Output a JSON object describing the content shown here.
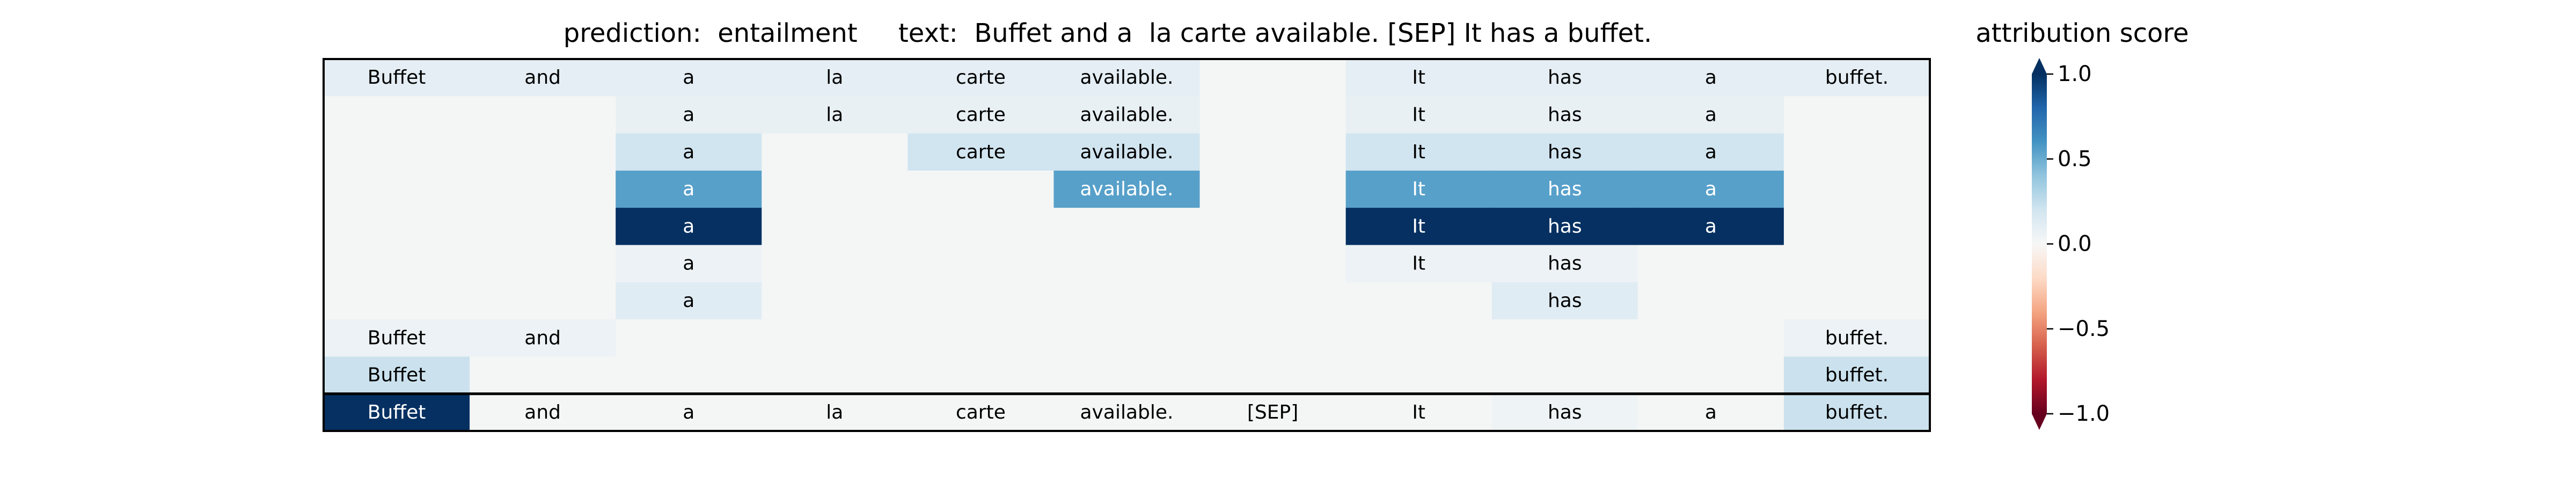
{
  "title": "prediction:  entailment     text:  Buffet and a  la carte available. [SEP] It has a buffet.",
  "colorbar": {
    "label": "attribution score",
    "ticks": [
      "1.0",
      "0.5",
      "0.0",
      "−0.5",
      "−1.0"
    ],
    "range": [
      -1.0,
      1.0
    ]
  },
  "colors": {
    "background": "#f4f6f6",
    "negative_end": "#67001f",
    "positive_end": "#053061"
  },
  "chart_data": {
    "type": "heatmap",
    "title": "prediction:  entailment     text:  Buffet and a  la carte available. [SEP] It has a buffet.",
    "columns": [
      "Buffet",
      "and",
      "a",
      "la",
      "carte",
      "available.",
      "[SEP]",
      "It",
      "has",
      "a",
      "buffet."
    ],
    "value_range": [
      -1.0,
      1.0
    ],
    "rows": [
      {
        "values": [
          0.1,
          0.1,
          0.1,
          0.1,
          0.1,
          0.1,
          0.0,
          0.1,
          0.1,
          0.1,
          0.1
        ],
        "labels": [
          "Buffet",
          "and",
          "a",
          "la",
          "carte",
          "available.",
          "",
          "It",
          "has",
          "a",
          "buffet."
        ]
      },
      {
        "values": [
          0.0,
          0.0,
          0.08,
          0.08,
          0.08,
          0.08,
          0.0,
          0.08,
          0.08,
          0.08,
          0.0
        ],
        "labels": [
          "",
          "",
          "a",
          "la",
          "carte",
          "available.",
          "",
          "It",
          "has",
          "a",
          ""
        ]
      },
      {
        "values": [
          0.0,
          0.0,
          0.2,
          0.0,
          0.2,
          0.2,
          0.0,
          0.2,
          0.2,
          0.2,
          0.0
        ],
        "labels": [
          "",
          "",
          "a",
          "",
          "carte",
          "available.",
          "",
          "It",
          "has",
          "a",
          ""
        ]
      },
      {
        "values": [
          0.0,
          0.0,
          0.55,
          0.0,
          0.0,
          0.55,
          0.0,
          0.55,
          0.55,
          0.55,
          0.0
        ],
        "labels": [
          "",
          "",
          "a",
          "",
          "",
          "available.",
          "",
          "It",
          "has",
          "a",
          ""
        ]
      },
      {
        "values": [
          0.0,
          0.0,
          1.0,
          0.0,
          0.0,
          0.0,
          0.0,
          1.0,
          1.0,
          1.0,
          0.0
        ],
        "labels": [
          "",
          "",
          "a",
          "",
          "",
          "",
          "",
          "It",
          "has",
          "a",
          ""
        ]
      },
      {
        "values": [
          0.0,
          0.0,
          0.06,
          0.0,
          0.0,
          0.0,
          0.0,
          0.06,
          0.06,
          0.0,
          0.0
        ],
        "labels": [
          "",
          "",
          "a",
          "",
          "",
          "",
          "",
          "It",
          "has",
          "",
          ""
        ]
      },
      {
        "values": [
          0.0,
          0.0,
          0.12,
          0.0,
          0.0,
          0.0,
          0.0,
          0.0,
          0.12,
          0.0,
          0.0
        ],
        "labels": [
          "",
          "",
          "a",
          "",
          "",
          "",
          "",
          "",
          "has",
          "",
          ""
        ]
      },
      {
        "values": [
          0.06,
          0.06,
          0.0,
          0.0,
          0.0,
          0.0,
          0.0,
          0.0,
          0.0,
          0.0,
          0.06
        ],
        "labels": [
          "Buffet",
          "and",
          "",
          "",
          "",
          "",
          "",
          "",
          "",
          "",
          "buffet."
        ]
      },
      {
        "values": [
          0.22,
          0.0,
          0.0,
          0.0,
          0.0,
          0.0,
          0.0,
          0.0,
          0.0,
          0.0,
          0.22
        ],
        "labels": [
          "Buffet",
          "",
          "",
          "",
          "",
          "",
          "",
          "",
          "",
          "",
          "buffet."
        ]
      },
      {
        "values": [
          1.0,
          0.0,
          0.0,
          0.0,
          0.0,
          0.0,
          0.0,
          0.0,
          0.05,
          0.0,
          0.22
        ],
        "labels": [
          "Buffet",
          "and",
          "a",
          "la",
          "carte",
          "available.",
          "[SEP]",
          "It",
          "has",
          "a",
          "buffet."
        ]
      }
    ],
    "separator_after_row": 9,
    "grid": false
  }
}
